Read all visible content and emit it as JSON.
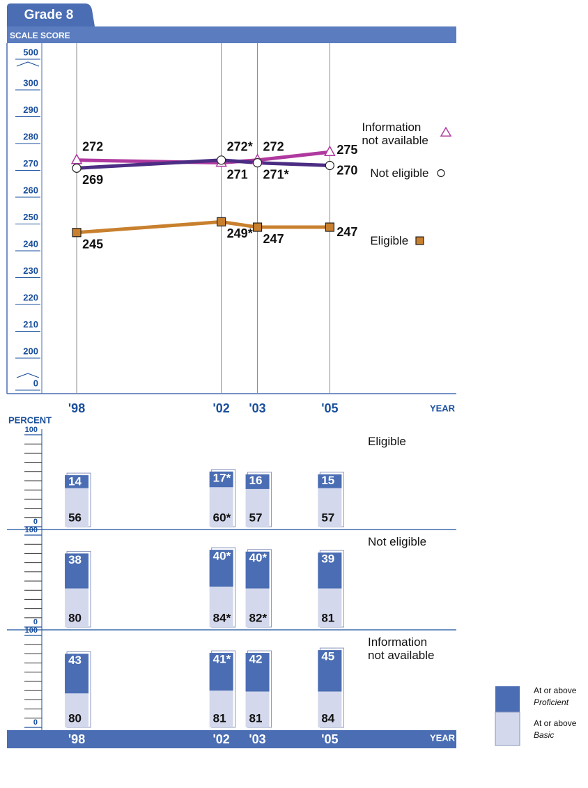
{
  "chart_data": [
    {
      "type": "line",
      "title": "Grade 8",
      "ylabel": "SCALE SCORE",
      "xlabel": "YEAR",
      "x": [
        1998,
        2002,
        2003,
        2005
      ],
      "xlim": [
        1996.65,
        2008.5
      ],
      "xticks": [
        {
          "value": 1998,
          "label": "'98"
        },
        {
          "value": 2002,
          "label": "'02"
        },
        {
          "value": 2003,
          "label": "'03"
        },
        {
          "value": 2005,
          "label": "'05"
        }
      ],
      "ylim": [
        200,
        300
      ],
      "yticks": [
        200,
        210,
        220,
        230,
        240,
        250,
        260,
        270,
        280,
        290,
        300
      ],
      "ybreak_ticks": [
        0,
        500
      ],
      "series": [
        {
          "name": "Information not available",
          "color": "#b0399f",
          "marker": "triangle",
          "values": [
            272,
            271,
            272,
            275
          ]
        },
        {
          "name": "Not eligible",
          "color": "#4c2d84",
          "marker": "circle",
          "values": [
            269,
            272,
            271,
            270
          ],
          "value_labels": [
            "269",
            "272*",
            "271*",
            "270"
          ]
        },
        {
          "name": "Eligible",
          "color": "#c8802e",
          "marker": "square",
          "values": [
            245,
            249,
            247,
            247
          ],
          "value_labels": [
            "245",
            "249*",
            "247",
            "247"
          ]
        }
      ]
    },
    {
      "type": "bar",
      "ylabel": "PERCENT",
      "xlabel": "YEAR",
      "x": [
        1998,
        2002,
        2003,
        2005
      ],
      "xlim": [
        1996.65,
        2008.5
      ],
      "xticks": [
        {
          "value": 1998,
          "label": "'98"
        },
        {
          "value": 2002,
          "label": "'02"
        },
        {
          "value": 2003,
          "label": "'03"
        },
        {
          "value": 2005,
          "label": "'05"
        }
      ],
      "ylim": [
        0,
        100
      ],
      "yticks": [
        0,
        100
      ],
      "yminor_ticks": [
        10,
        20,
        30,
        40,
        50,
        60,
        70,
        80,
        90
      ],
      "series": [
        {
          "name": "At or above Proficient",
          "color": "#4a6db3"
        },
        {
          "name": "At or above Basic",
          "color": "#d3d8ec"
        }
      ],
      "panels": [
        {
          "title": "Eligible",
          "series": [
            {
              "values": [
                14,
                17,
                16,
                15
              ],
              "value_labels": [
                "14",
                "17*",
                "16",
                "15"
              ]
            },
            {
              "values": [
                56,
                60,
                57,
                57
              ],
              "value_labels": [
                "56",
                "60*",
                "57",
                "57"
              ]
            }
          ]
        },
        {
          "title": "Not eligible",
          "series": [
            {
              "values": [
                38,
                40,
                40,
                39
              ],
              "value_labels": [
                "38",
                "40*",
                "40*",
                "39"
              ]
            },
            {
              "values": [
                80,
                84,
                82,
                81
              ],
              "value_labels": [
                "80",
                "84*",
                "82*",
                "81"
              ]
            }
          ]
        },
        {
          "title": "Information not available",
          "series": [
            {
              "values": [
                43,
                41,
                42,
                45
              ],
              "value_labels": [
                "43",
                "41*",
                "42",
                "45"
              ]
            },
            {
              "values": [
                80,
                81,
                81,
                84
              ]
            }
          ]
        }
      ]
    }
  ]
}
